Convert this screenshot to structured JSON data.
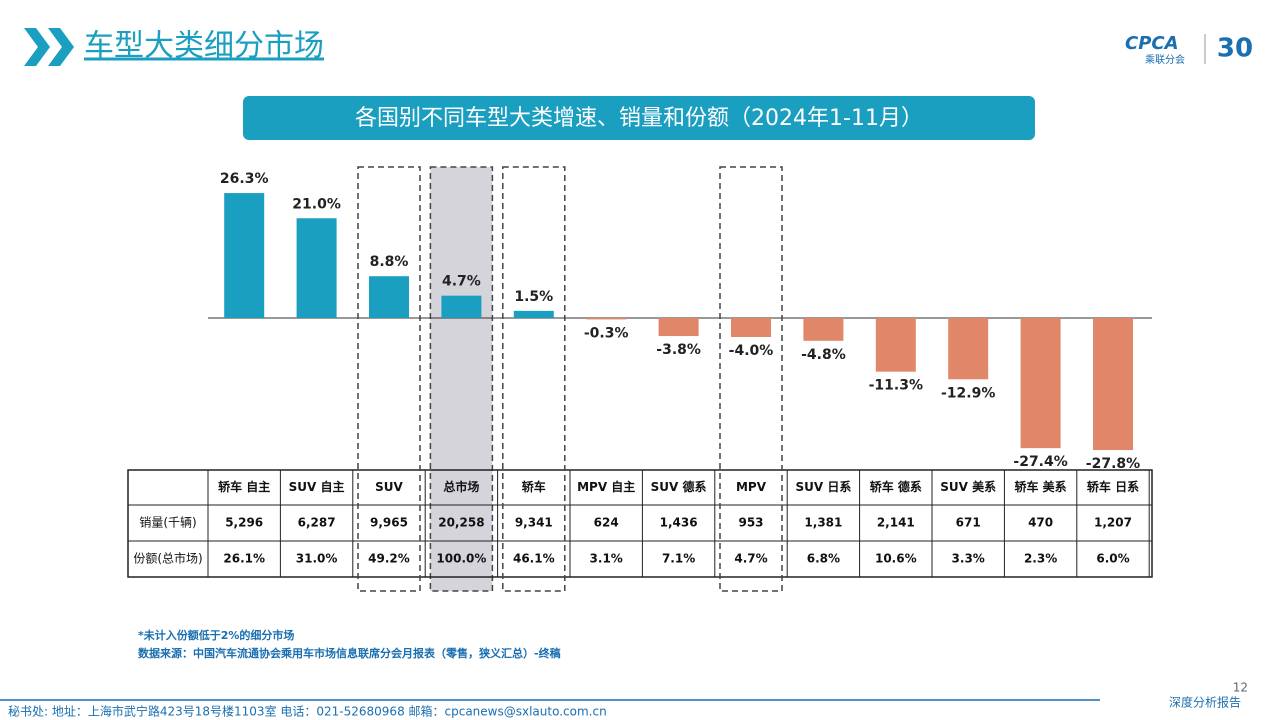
{
  "header": {
    "title": "车型大类细分市场",
    "logo": "CPCA",
    "logo_sub": "乘联分会",
    "logo_anniversary": "30"
  },
  "chart_data": {
    "type": "bar",
    "title": "各国别不同车型大类增速、销量和份额（2024年1-11月）",
    "categories": [
      "轿车 自主",
      "SUV 自主",
      "SUV",
      "总市场",
      "轿车",
      "MPV 自主",
      "SUV 德系",
      "MPV",
      "SUV 日系",
      "轿车 德系",
      "SUV 美系",
      "轿车 美系",
      "轿车 日系"
    ],
    "values": [
      26.3,
      21.0,
      8.8,
      4.7,
      1.5,
      -0.3,
      -3.8,
      -4.0,
      -4.8,
      -11.3,
      -12.9,
      -27.4,
      -27.8
    ],
    "value_labels": [
      "26.3%",
      "21.0%",
      "8.8%",
      "4.7%",
      "1.5%",
      "-0.3%",
      "-3.8%",
      "-4.0%",
      "-4.8%",
      "-11.3%",
      "-12.9%",
      "-27.4%",
      "-27.8%"
    ],
    "color_positive": "#1a9fc0",
    "color_negative": "#e0876a",
    "highlighted_columns": [
      2,
      4,
      7
    ],
    "shaded_column": 3
  },
  "table": {
    "rows": [
      {
        "label": "销量(千辆)",
        "cells": [
          "5,296",
          "6,287",
          "9,965",
          "20,258",
          "9,341",
          "624",
          "1,436",
          "953",
          "1,381",
          "2,141",
          "671",
          "470",
          "1,207"
        ]
      },
      {
        "label": "份额(总市场)",
        "cells": [
          "26.1%",
          "31.0%",
          "49.2%",
          "100.0%",
          "46.1%",
          "3.1%",
          "7.1%",
          "4.7%",
          "6.8%",
          "10.6%",
          "3.3%",
          "2.3%",
          "6.0%"
        ]
      }
    ]
  },
  "notes": [
    "*未计入份额低于2%的细分市场",
    "数据来源：中国汽车流通协会乘用车市场信息联席分会月报表（零售，狭义汇总）-终稿"
  ],
  "footer": {
    "address": "秘书处:  地址：上海市武宁路423号18号楼1103室  电话：021-52680968   邮箱：cpcanews@sxlauto.com.cn",
    "report": "深度分析报告",
    "page": "12"
  }
}
